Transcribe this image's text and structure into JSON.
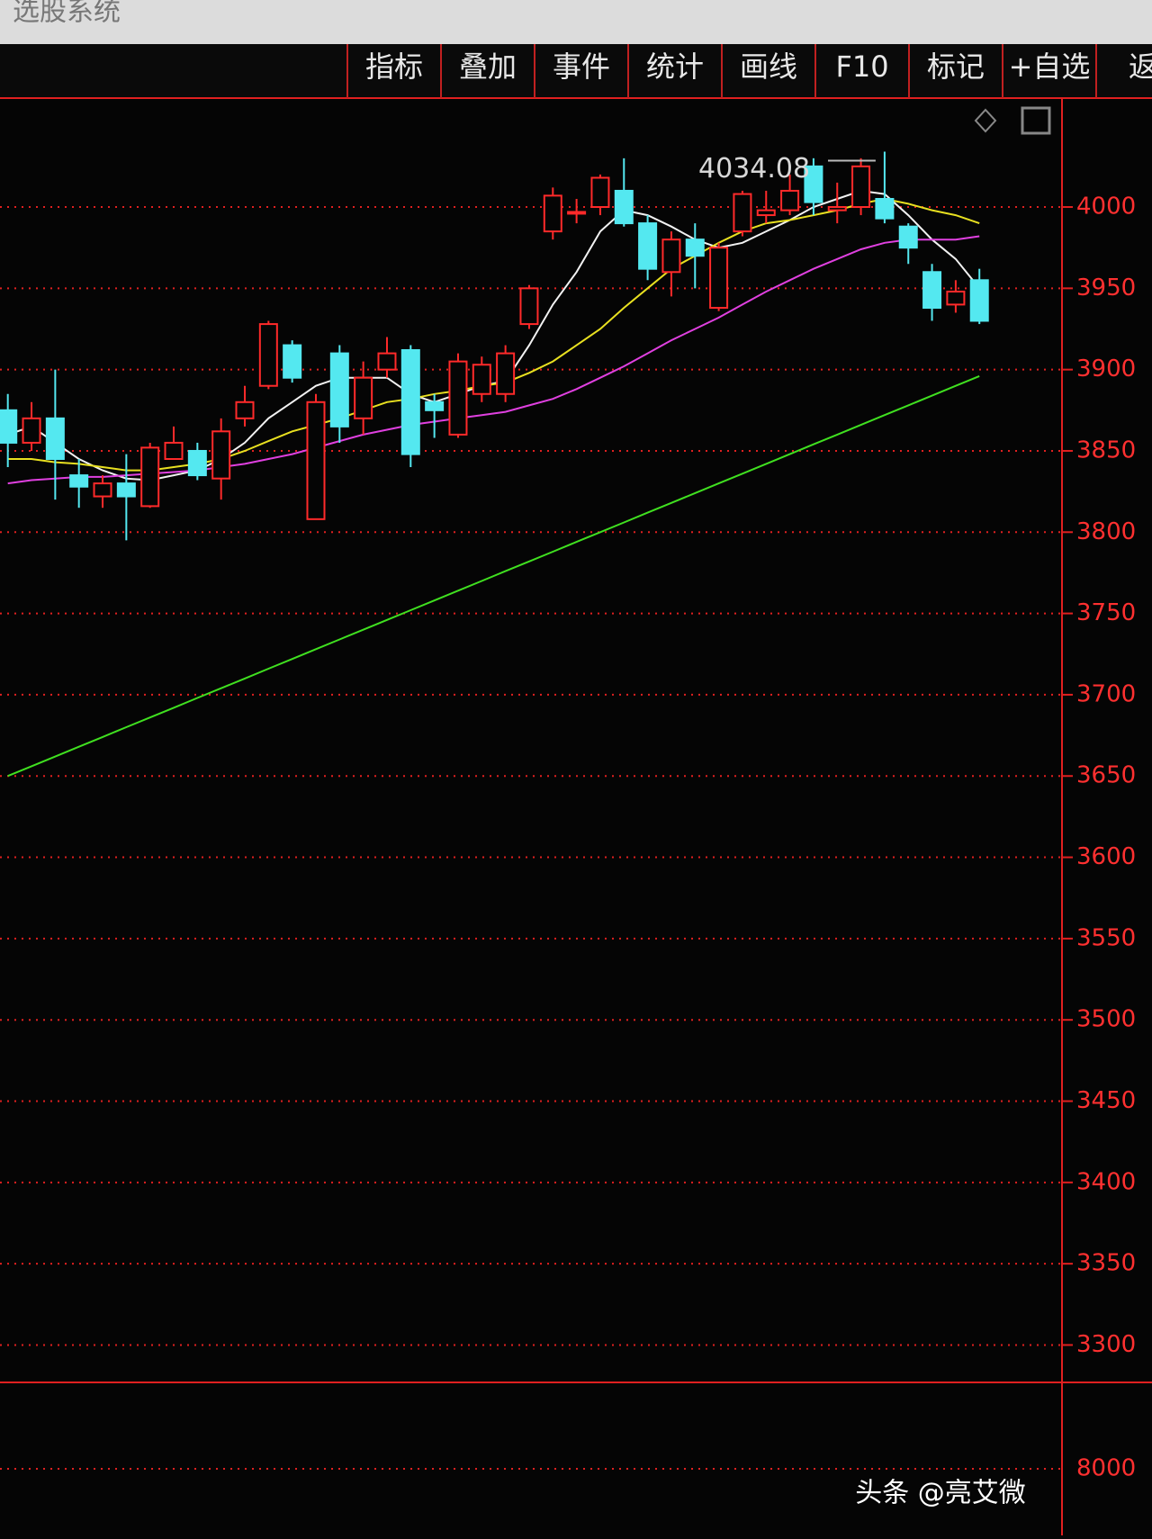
{
  "window": {
    "title": "选股系统"
  },
  "toolbar": {
    "buttons": [
      "指标",
      "叠加",
      "事件",
      "统计",
      "画线",
      "F10",
      "标记",
      "+自选",
      "返"
    ]
  },
  "chart_data": {
    "type": "candlestick",
    "annotation": {
      "text": "4034.08",
      "value": 4034.08
    },
    "ohlc_up_color": "#ff2a2a",
    "ohlc_down_color": "#54e8f0",
    "open": [
      3875,
      3855,
      3870,
      3835,
      3822,
      3830,
      3816,
      3845,
      3850,
      3833,
      3870,
      3890,
      3915,
      3808,
      3910,
      3870,
      3900,
      3912,
      3880,
      3860,
      3885,
      3885,
      3928,
      3985,
      3996,
      4000,
      4010,
      3990,
      3960,
      3980,
      3938,
      3985,
      3995,
      3998,
      4025,
      3998,
      4000,
      4005,
      3988,
      3960,
      3940,
      3955
    ],
    "high": [
      3885,
      3880,
      3900,
      3845,
      3835,
      3848,
      3855,
      3865,
      3855,
      3870,
      3890,
      3930,
      3918,
      3885,
      3915,
      3905,
      3920,
      3915,
      3885,
      3910,
      3908,
      3915,
      3952,
      4012,
      4005,
      4020,
      4030,
      3995,
      3985,
      3990,
      3978,
      4010,
      4010,
      4020,
      4030,
      4015,
      4030,
      4034.08,
      3990,
      3965,
      3955,
      3962
    ],
    "low": [
      3840,
      3850,
      3820,
      3815,
      3815,
      3795,
      3815,
      3845,
      3832,
      3820,
      3865,
      3888,
      3892,
      3808,
      3855,
      3860,
      3895,
      3840,
      3858,
      3858,
      3880,
      3880,
      3925,
      3980,
      3990,
      3995,
      3988,
      3955,
      3945,
      3950,
      3936,
      3982,
      3990,
      3995,
      3995,
      3990,
      3995,
      3990,
      3965,
      3930,
      3935,
      3928
    ],
    "close": [
      3855,
      3870,
      3845,
      3828,
      3830,
      3822,
      3852,
      3855,
      3835,
      3862,
      3880,
      3928,
      3895,
      3880,
      3865,
      3895,
      3910,
      3848,
      3875,
      3905,
      3903,
      3910,
      3950,
      4007,
      3997,
      4018,
      3990,
      3962,
      3980,
      3970,
      3975,
      4008,
      3998,
      4010,
      4003,
      4000,
      4025,
      3993,
      3975,
      3938,
      3948,
      3930
    ],
    "series": [
      {
        "color": "#f2f2f2",
        "values": [
          3860,
          3865,
          3855,
          3845,
          3838,
          3833,
          3832,
          3835,
          3838,
          3845,
          3855,
          3870,
          3880,
          3890,
          3895,
          3895,
          3895,
          3885,
          3880,
          3885,
          3890,
          3893,
          3915,
          3940,
          3960,
          3985,
          3998,
          3995,
          3988,
          3980,
          3975,
          3978,
          3985,
          3992,
          4000,
          4005,
          4010,
          4008,
          3995,
          3980,
          3968,
          3950
        ]
      },
      {
        "color": "#e8e020",
        "values": [
          3845,
          3845,
          3843,
          3842,
          3840,
          3838,
          3838,
          3840,
          3842,
          3845,
          3850,
          3856,
          3862,
          3866,
          3870,
          3875,
          3880,
          3882,
          3885,
          3887,
          3890,
          3892,
          3898,
          3905,
          3915,
          3925,
          3938,
          3950,
          3962,
          3970,
          3978,
          3985,
          3990,
          3992,
          3995,
          3998,
          4002,
          4005,
          4002,
          3998,
          3995,
          3990
        ]
      },
      {
        "color": "#e040e0",
        "values": [
          3830,
          3832,
          3833,
          3834,
          3834,
          3835,
          3836,
          3837,
          3838,
          3840,
          3842,
          3845,
          3848,
          3852,
          3856,
          3860,
          3863,
          3866,
          3868,
          3870,
          3872,
          3874,
          3878,
          3882,
          3888,
          3895,
          3902,
          3910,
          3918,
          3925,
          3932,
          3940,
          3948,
          3955,
          3962,
          3968,
          3974,
          3978,
          3980,
          3980,
          3980,
          3982
        ]
      },
      {
        "color": "#40e020",
        "values": [
          3650,
          3656,
          3662,
          3668,
          3674,
          3680,
          3686,
          3692,
          3698,
          3704,
          3710,
          3716,
          3722,
          3728,
          3734,
          3740,
          3746,
          3752,
          3758,
          3764,
          3770,
          3776,
          3782,
          3788,
          3794,
          3800,
          3806,
          3812,
          3818,
          3824,
          3830,
          3836,
          3842,
          3848,
          3854,
          3860,
          3866,
          3872,
          3878,
          3884,
          3890,
          3896
        ]
      }
    ],
    "ylim": [
      3277,
      4067
    ],
    "yticks": [
      4000,
      3950,
      3900,
      3850,
      3800,
      3750,
      3700,
      3650,
      3600,
      3550,
      3500,
      3450,
      3400,
      3350,
      3300
    ],
    "grid": true,
    "volume_yticks": [
      8000
    ]
  },
  "watermark": "头条 @亮艾微"
}
